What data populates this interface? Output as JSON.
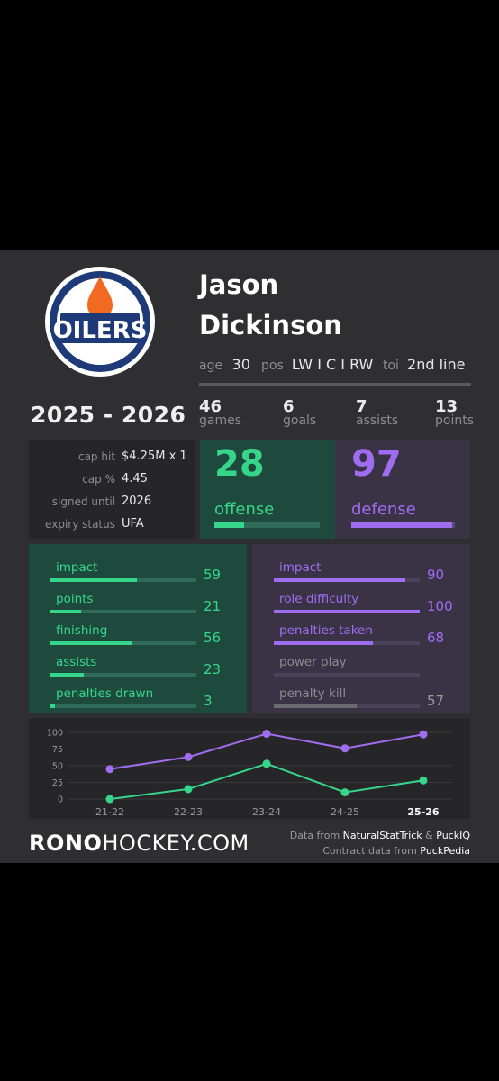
{
  "player": {
    "first_name": "Jason",
    "last_name": "Dickinson"
  },
  "info": {
    "age_label": "age",
    "age_value": "30",
    "pos_label": "pos",
    "pos_value": "LW I C I RW",
    "toi_label": "toi",
    "toi_value": "2nd line"
  },
  "season": "2025 - 2026",
  "logo": {
    "text": "OILERS",
    "colors": {
      "navy": "#1e3a78",
      "orange": "#f26a21"
    }
  },
  "stats": [
    {
      "value": "46",
      "label": "games"
    },
    {
      "value": "6",
      "label": "goals"
    },
    {
      "value": "7",
      "label": "assists"
    },
    {
      "value": "13",
      "label": "points"
    }
  ],
  "contract": [
    {
      "label": "cap hit",
      "value": "$4.25M x 1"
    },
    {
      "label": "cap %",
      "value": "4.45"
    },
    {
      "label": "signed until",
      "value": "2026"
    },
    {
      "label": "expiry status",
      "value": "UFA"
    }
  ],
  "offense": {
    "score": "28",
    "label": "offense",
    "fill": 0.28,
    "color": "#36d68a"
  },
  "defense": {
    "score": "97",
    "label": "defense",
    "fill": 0.97,
    "color": "#a06cf0"
  },
  "offense_metrics": [
    {
      "label": "impact",
      "value": "59",
      "fill": 0.59
    },
    {
      "label": "points",
      "value": "21",
      "fill": 0.21
    },
    {
      "label": "finishing",
      "value": "56",
      "fill": 0.56
    },
    {
      "label": "assists",
      "value": "23",
      "fill": 0.23
    },
    {
      "label": "penalties drawn",
      "value": "3",
      "fill": 0.03
    }
  ],
  "defense_metrics": [
    {
      "label": "impact",
      "value": "90",
      "fill": 0.9,
      "active": true
    },
    {
      "label": "role difficulty",
      "value": "100",
      "fill": 1.0,
      "active": true
    },
    {
      "label": "penalties taken",
      "value": "68",
      "fill": 0.68,
      "active": true
    },
    {
      "label": "power play",
      "value": "",
      "fill": 0,
      "active": false
    },
    {
      "label": "penalty kill",
      "value": "57",
      "fill": 0.57,
      "active": false
    }
  ],
  "chart_data": {
    "type": "line",
    "categories": [
      "21-22",
      "22-23",
      "23-24",
      "24-25",
      "25-26"
    ],
    "series": [
      {
        "values": [
          45,
          63,
          98,
          76,
          97
        ],
        "color": "#a06cf0"
      },
      {
        "values": [
          0,
          15,
          53,
          10,
          28
        ],
        "color": "#36d68a"
      }
    ],
    "yticks": [
      "100",
      "75",
      "50",
      "25",
      "0"
    ],
    "ylim": [
      0,
      100
    ],
    "grid": true,
    "highlight_category": "25-26"
  },
  "footer": {
    "brand_bold": "RONO",
    "brand_rest": "HOCKEY.COM",
    "credit_1_prefix": "Data from ",
    "credit_1_src1": "NaturalStatTrick",
    "credit_1_amp": " & ",
    "credit_1_src2": "PuckIQ",
    "credit_2_prefix": "Contract data from ",
    "credit_2_src": "PuckPedia"
  }
}
